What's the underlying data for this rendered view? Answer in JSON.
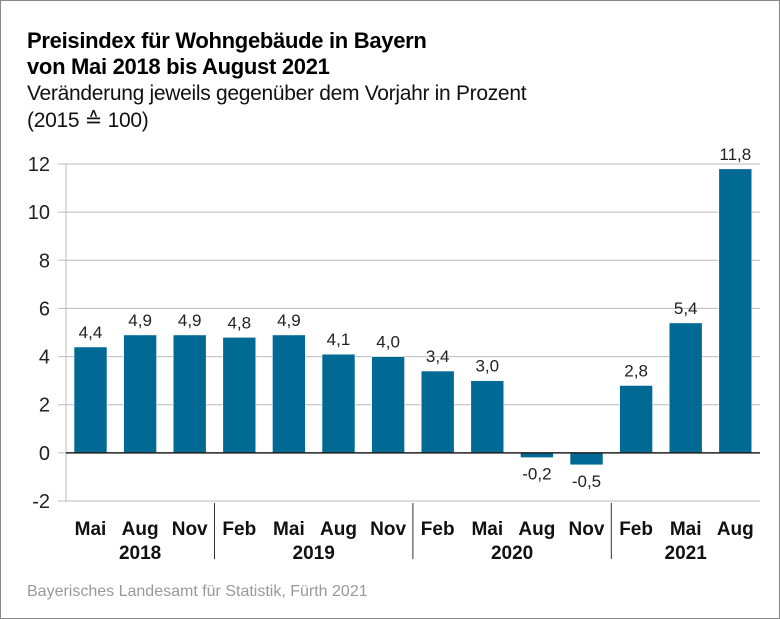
{
  "title_line1": "Preisindex für Wohngebäude in Bayern",
  "title_line2": "von Mai 2018 bis August 2021",
  "subtitle_line1": "Veränderung jeweils gegenüber dem Vorjahr in Prozent",
  "subtitle_line2": "(2015 ≙ 100)",
  "source": "Bayerisches Landesamt für Statistik, Fürth 2021",
  "chart_data": {
    "type": "bar",
    "title": "Preisindex für Wohngebäude in Bayern von Mai 2018 bis August 2021",
    "subtitle": "Veränderung jeweils gegenüber dem Vorjahr in Prozent (2015 ≙ 100)",
    "xlabel": "",
    "ylabel": "",
    "ylim": [
      -2,
      12
    ],
    "yticks": [
      -2,
      0,
      2,
      4,
      6,
      8,
      10,
      12
    ],
    "grid": true,
    "bar_color": "#006a94",
    "categories": [
      "Mai",
      "Aug",
      "Nov",
      "Feb",
      "Mai",
      "Aug",
      "Nov",
      "Feb",
      "Mai",
      "Aug",
      "Nov",
      "Feb",
      "Mai",
      "Aug"
    ],
    "groups": [
      {
        "label": "2018",
        "count": 3
      },
      {
        "label": "2019",
        "count": 4
      },
      {
        "label": "2020",
        "count": 4
      },
      {
        "label": "2021",
        "count": 3
      }
    ],
    "values": [
      4.4,
      4.9,
      4.9,
      4.8,
      4.9,
      4.1,
      4.0,
      3.4,
      3.0,
      -0.2,
      -0.5,
      2.8,
      5.4,
      11.8
    ],
    "value_labels": [
      "4,4",
      "4,9",
      "4,9",
      "4,8",
      "4,9",
      "4,1",
      "4,0",
      "3,4",
      "3,0",
      "-0,2",
      "-0,5",
      "2,8",
      "5,4",
      "11,8"
    ]
  }
}
